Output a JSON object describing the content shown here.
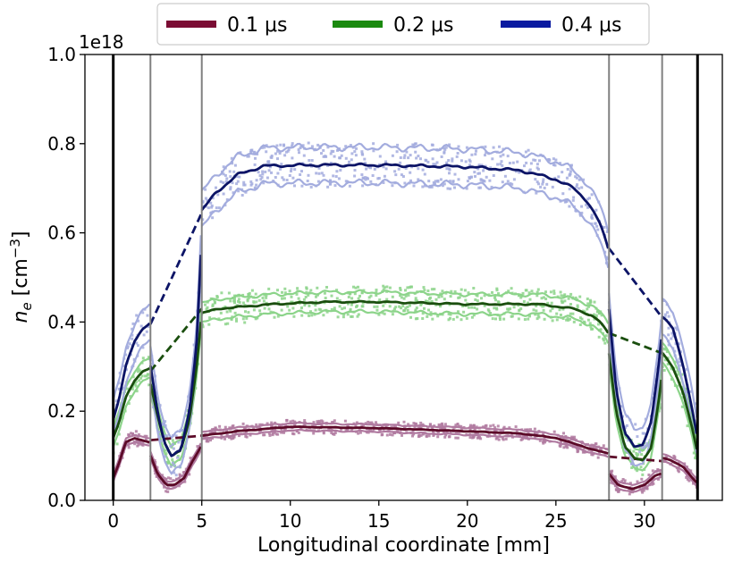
{
  "chart_data": {
    "type": "line",
    "xlabel": "Longitudinal coordinate [mm]",
    "ylabel_main": "n",
    "ylabel_sub": "e",
    "ylabel_unit_open": " [cm",
    "ylabel_unit_exp": "−3",
    "ylabel_unit_close": "]",
    "offset_text": "1e18",
    "xlim": [
      -1.6,
      34.4
    ],
    "ylim": [
      0.0,
      1.0
    ],
    "xticks": [
      0,
      5,
      10,
      15,
      20,
      25,
      30
    ],
    "xtick_labels": [
      "0",
      "5",
      "10",
      "15",
      "20",
      "25",
      "30"
    ],
    "yticks": [
      0.0,
      0.2,
      0.4,
      0.6,
      0.8,
      1.0
    ],
    "ytick_labels": [
      "0.0",
      "0.2",
      "0.4",
      "0.6",
      "0.8",
      "1.0"
    ],
    "vlines": [
      {
        "x": 0,
        "color": "#000000",
        "width": 3
      },
      {
        "x": 33,
        "color": "#000000",
        "width": 3
      },
      {
        "x": 2.1,
        "color": "#808080",
        "width": 2
      },
      {
        "x": 5.0,
        "color": "#808080",
        "width": 2
      },
      {
        "x": 28.0,
        "color": "#808080",
        "width": 2
      },
      {
        "x": 31.0,
        "color": "#808080",
        "width": 2
      }
    ],
    "legend": [
      {
        "label": "0.1 μs",
        "color": "#7b0c34"
      },
      {
        "label": "0.2 μs",
        "color": "#1b8a0f"
      },
      {
        "label": "0.4 μs",
        "color": "#0a1aa0"
      }
    ],
    "series": [
      {
        "name": "0.1 μs",
        "color": "#7b0c34",
        "dark": "#5c0a28",
        "light": "#b07aa0",
        "band": 0.008,
        "noise": 0.012,
        "segments": [
          [
            [
              0,
              0.05
            ],
            [
              0.3,
              0.08
            ],
            [
              0.7,
              0.13
            ],
            [
              1.2,
              0.14
            ],
            [
              1.6,
              0.135
            ],
            [
              2.05,
              0.13
            ]
          ],
          [
            [
              2.1,
              0.1
            ],
            [
              2.5,
              0.06
            ],
            [
              3.0,
              0.035
            ],
            [
              3.5,
              0.035
            ],
            [
              4.0,
              0.05
            ],
            [
              4.5,
              0.09
            ],
            [
              4.95,
              0.12
            ]
          ],
          [
            [
              5.0,
              0.145
            ],
            [
              7,
              0.155
            ],
            [
              10,
              0.165
            ],
            [
              15,
              0.162
            ],
            [
              20,
              0.155
            ],
            [
              23,
              0.15
            ],
            [
              25,
              0.14
            ],
            [
              27,
              0.115
            ],
            [
              27.95,
              0.105
            ]
          ],
          [
            [
              28.0,
              0.06
            ],
            [
              28.5,
              0.035
            ],
            [
              29.3,
              0.025
            ],
            [
              30.0,
              0.035
            ],
            [
              30.6,
              0.055
            ],
            [
              30.95,
              0.06
            ]
          ],
          [
            [
              31.0,
              0.095
            ],
            [
              31.5,
              0.09
            ],
            [
              32.2,
              0.075
            ],
            [
              32.7,
              0.05
            ],
            [
              32.95,
              0.04
            ]
          ]
        ],
        "dashed": [
          [
            [
              2.1,
              0.135
            ],
            [
              5.0,
              0.145
            ]
          ],
          [
            [
              28.0,
              0.098
            ],
            [
              31.0,
              0.088
            ]
          ]
        ]
      },
      {
        "name": "0.2 μs",
        "color": "#1b8a0f",
        "dark": "#1a4e0e",
        "light": "#8cd48a",
        "band": 0.022,
        "noise": 0.025,
        "segments": [
          [
            [
              0,
              0.14
            ],
            [
              0.3,
              0.17
            ],
            [
              0.7,
              0.23
            ],
            [
              1.2,
              0.27
            ],
            [
              1.7,
              0.29
            ],
            [
              2.05,
              0.295
            ]
          ],
          [
            [
              2.1,
              0.26
            ],
            [
              2.5,
              0.19
            ],
            [
              2.9,
              0.13
            ],
            [
              3.3,
              0.1
            ],
            [
              3.8,
              0.11
            ],
            [
              4.3,
              0.18
            ],
            [
              4.7,
              0.3
            ],
            [
              4.95,
              0.4
            ]
          ],
          [
            [
              5.0,
              0.42
            ],
            [
              6,
              0.43
            ],
            [
              9,
              0.44
            ],
            [
              12,
              0.445
            ],
            [
              15,
              0.445
            ],
            [
              20,
              0.44
            ],
            [
              24,
              0.44
            ],
            [
              26,
              0.43
            ],
            [
              27,
              0.415
            ],
            [
              27.5,
              0.4
            ],
            [
              27.95,
              0.375
            ]
          ],
          [
            [
              28.0,
              0.33
            ],
            [
              28.4,
              0.2
            ],
            [
              28.9,
              0.12
            ],
            [
              29.4,
              0.095
            ],
            [
              29.9,
              0.09
            ],
            [
              30.4,
              0.12
            ],
            [
              30.8,
              0.22
            ],
            [
              30.95,
              0.27
            ]
          ],
          [
            [
              31.0,
              0.33
            ],
            [
              31.6,
              0.3
            ],
            [
              32.2,
              0.24
            ],
            [
              32.7,
              0.16
            ],
            [
              32.95,
              0.115
            ]
          ]
        ],
        "dashed": [
          [
            [
              2.1,
              0.29
            ],
            [
              5.0,
              0.43
            ]
          ],
          [
            [
              28.0,
              0.375
            ],
            [
              31.0,
              0.33
            ]
          ]
        ]
      },
      {
        "name": "0.4 μs",
        "color": "#0a1aa0",
        "dark": "#0c1466",
        "light": "#a3acde",
        "band": 0.04,
        "noise": 0.03,
        "segments": [
          [
            [
              0,
              0.18
            ],
            [
              0.3,
              0.22
            ],
            [
              0.7,
              0.3
            ],
            [
              1.2,
              0.36
            ],
            [
              1.7,
              0.385
            ],
            [
              2.05,
              0.395
            ]
          ],
          [
            [
              2.1,
              0.3
            ],
            [
              2.5,
              0.2
            ],
            [
              2.9,
              0.13
            ],
            [
              3.3,
              0.1
            ],
            [
              3.8,
              0.11
            ],
            [
              4.3,
              0.2
            ],
            [
              4.7,
              0.35
            ],
            [
              4.95,
              0.55
            ]
          ],
          [
            [
              5.0,
              0.65
            ],
            [
              5.8,
              0.69
            ],
            [
              7,
              0.73
            ],
            [
              8.5,
              0.75
            ],
            [
              11,
              0.752
            ],
            [
              15,
              0.752
            ],
            [
              20,
              0.748
            ],
            [
              23,
              0.74
            ],
            [
              25,
              0.72
            ],
            [
              26,
              0.7
            ],
            [
              26.8,
              0.67
            ],
            [
              27.5,
              0.62
            ],
            [
              27.95,
              0.565
            ]
          ],
          [
            [
              28.0,
              0.43
            ],
            [
              28.4,
              0.25
            ],
            [
              28.9,
              0.15
            ],
            [
              29.4,
              0.12
            ],
            [
              29.9,
              0.125
            ],
            [
              30.4,
              0.18
            ],
            [
              30.8,
              0.3
            ],
            [
              30.95,
              0.36
            ]
          ],
          [
            [
              31.0,
              0.41
            ],
            [
              31.6,
              0.39
            ],
            [
              32.2,
              0.3
            ],
            [
              32.7,
              0.2
            ],
            [
              32.95,
              0.15
            ]
          ]
        ],
        "dashed": [
          [
            [
              2.1,
              0.395
            ],
            [
              5.0,
              0.645
            ]
          ],
          [
            [
              28.0,
              0.565
            ],
            [
              31.0,
              0.41
            ]
          ]
        ]
      }
    ]
  }
}
